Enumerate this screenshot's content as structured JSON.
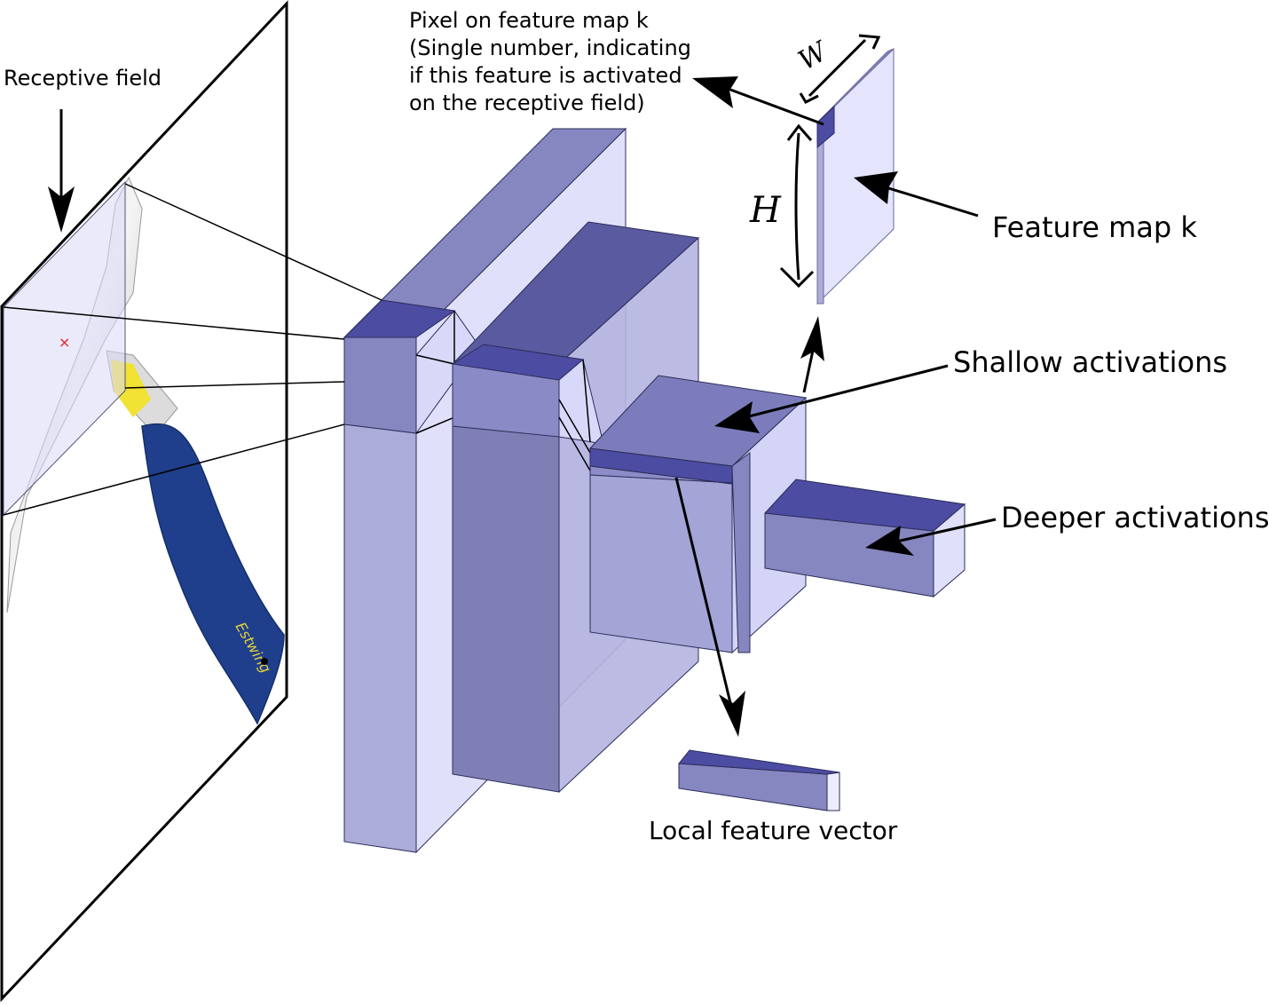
{
  "labels": {
    "receptive_field": "Receptive field",
    "pixel_line1": "Pixel on feature map k",
    "pixel_line2": "(Single number, indicating",
    "pixel_line3": "if this feature is activated",
    "pixel_line4": "on the receptive field)",
    "feature_map": "Feature map k",
    "shallow": "Shallow activations",
    "deeper": "Deeper activations",
    "local_vector": "Local feature vector",
    "width_symbol": "W",
    "height_symbol": "H",
    "image_brand": "Estwing"
  },
  "colors": {
    "top_dark": "#4c4ca2",
    "front": "#8686c0",
    "side": "#d8d8f8",
    "light_face": "#e4e4fc",
    "lower": "#acacd8",
    "handle": "#1f3f8c"
  }
}
